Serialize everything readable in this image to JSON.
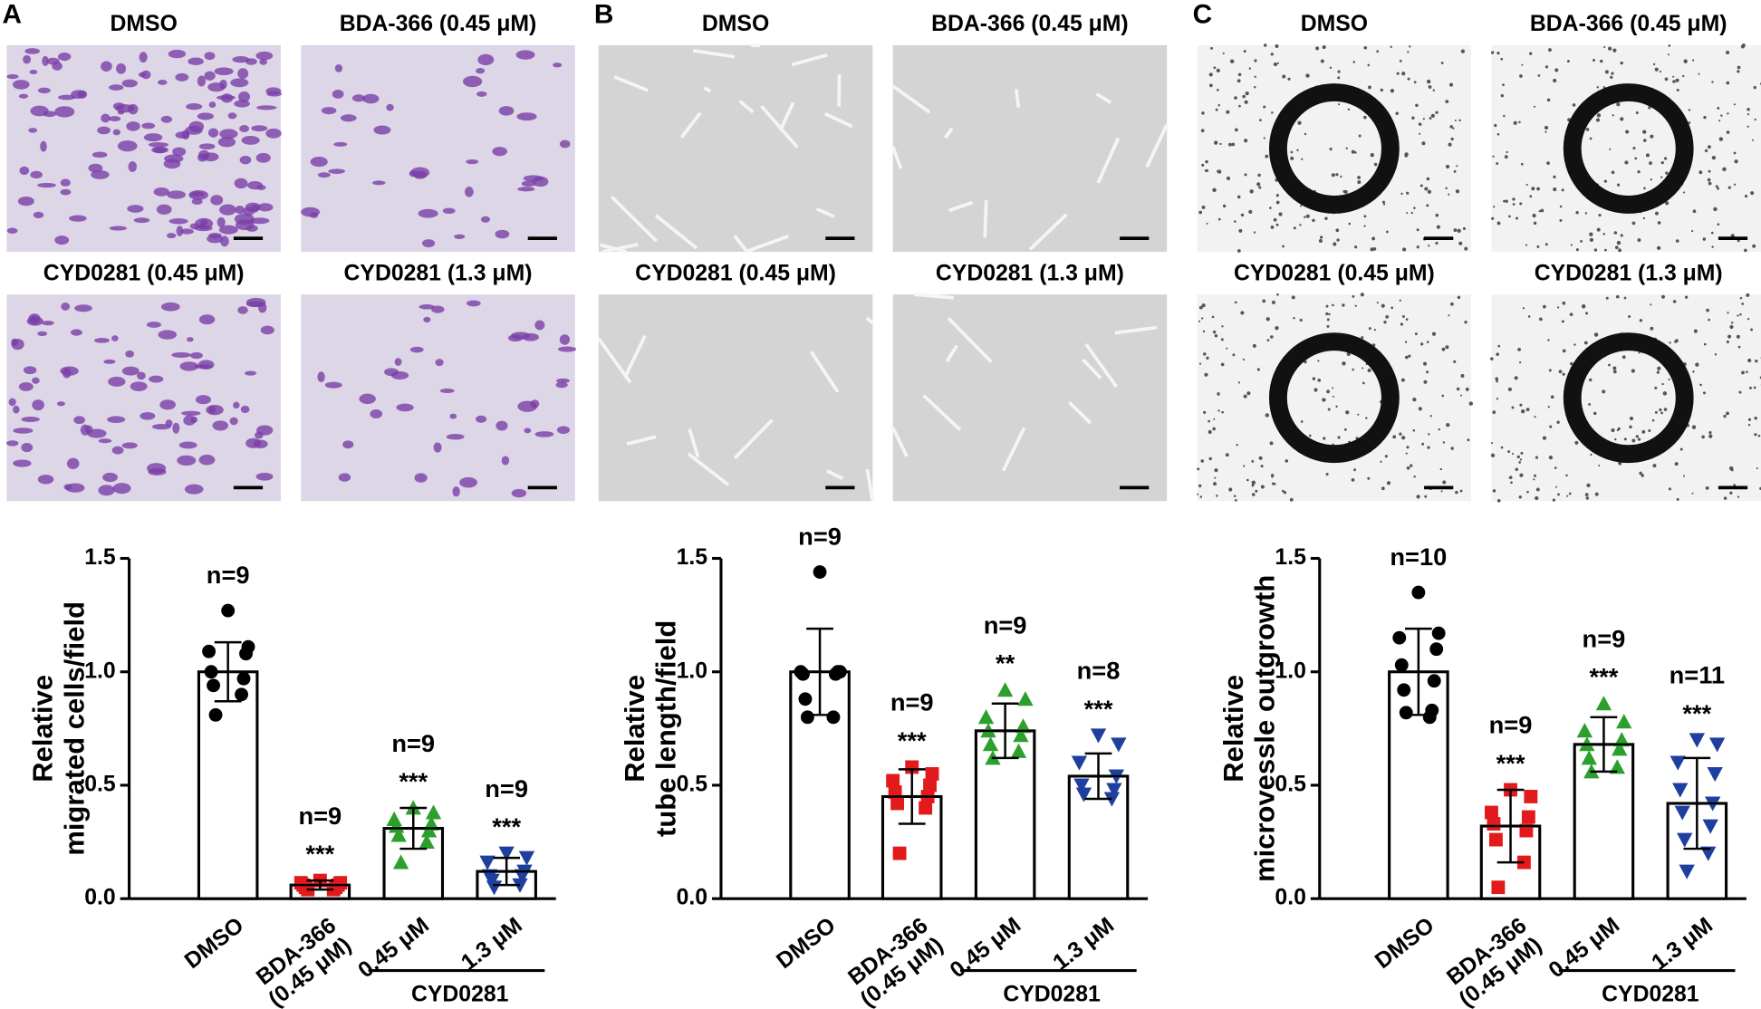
{
  "chart_data": [
    {
      "type": "bar",
      "panel": "A",
      "images": [
        {
          "caption": "DMSO"
        },
        {
          "caption": "BDA-366 (0.45 μM)"
        },
        {
          "caption": "CYD0281 (0.45 μM)"
        },
        {
          "caption": "CYD0281 (1.3 μM)"
        }
      ],
      "ylabel": "Relative migrated cells/field",
      "categories": [
        "DMSO",
        "BDA-366 (0.45 μM)",
        "0.45 μM",
        "1.3 μM"
      ],
      "group_label": "CYD0281",
      "values": [
        1.0,
        0.06,
        0.31,
        0.12
      ],
      "errors": [
        0.13,
        0.02,
        0.09,
        0.06
      ],
      "points": [
        [
          1.27,
          1.11,
          1.09,
          1.08,
          1.0,
          0.97,
          0.94,
          0.9,
          0.81
        ],
        [
          0.08,
          0.07,
          0.07,
          0.06,
          0.06,
          0.05,
          0.05,
          0.04,
          0.04
        ],
        [
          0.4,
          0.38,
          0.35,
          0.33,
          0.32,
          0.3,
          0.28,
          0.25,
          0.16
        ],
        [
          0.2,
          0.18,
          0.16,
          0.12,
          0.1,
          0.1,
          0.08,
          0.06,
          0.05
        ]
      ],
      "colors": [
        "#000000",
        "#e31a1c",
        "#2ca02c",
        "#1f3f9f"
      ],
      "markers": [
        "circle",
        "square",
        "triangle",
        "triangle-down"
      ],
      "annotations": [
        {
          "n": "n=9"
        },
        {
          "n": "n=9",
          "sig": "***"
        },
        {
          "n": "n=9",
          "sig": "***"
        },
        {
          "n": "n=9",
          "sig": "***"
        }
      ],
      "ylim": [
        0,
        1.5
      ],
      "yticks": [
        {
          "value": 0,
          "label": "0.0"
        },
        0.5,
        {
          "value": 1,
          "label": "1.0"
        },
        1.5
      ]
    },
    {
      "type": "bar",
      "panel": "B",
      "images": [
        {
          "caption": "DMSO"
        },
        {
          "caption": "BDA-366 (0.45 μM)"
        },
        {
          "caption": "CYD0281 (0.45 μM)"
        },
        {
          "caption": "CYD0281 (1.3 μM)"
        }
      ],
      "ylabel": "Relative tube length/field",
      "categories": [
        "DMSO",
        "BDA-366 (0.45 μM)",
        "0.45 μM",
        "1.3 μM"
      ],
      "group_label": "CYD0281",
      "values": [
        1.0,
        0.45,
        0.74,
        0.54
      ],
      "errors": [
        0.19,
        0.12,
        0.12,
        0.1
      ],
      "points": [
        [
          1.44,
          1.0,
          1.0,
          1.0,
          0.99,
          0.99,
          0.88,
          0.8,
          0.8
        ],
        [
          0.58,
          0.55,
          0.52,
          0.5,
          0.47,
          0.45,
          0.42,
          0.4,
          0.2
        ],
        [
          0.92,
          0.88,
          0.8,
          0.76,
          0.74,
          0.72,
          0.68,
          0.65,
          0.62
        ],
        [
          0.72,
          0.68,
          0.6,
          0.54,
          0.5,
          0.48,
          0.46,
          0.44
        ]
      ],
      "colors": [
        "#000000",
        "#e31a1c",
        "#2ca02c",
        "#1f3f9f"
      ],
      "markers": [
        "circle",
        "square",
        "triangle",
        "triangle-down"
      ],
      "annotations": [
        {
          "n": "n=9"
        },
        {
          "n": "n=9",
          "sig": "***"
        },
        {
          "n": "n=9",
          "sig": "**"
        },
        {
          "n": "n=8",
          "sig": "***"
        }
      ],
      "ylim": [
        0,
        1.5
      ],
      "yticks": [
        {
          "value": 0,
          "label": "0.0"
        },
        0.5,
        {
          "value": 1,
          "label": "1.0"
        },
        1.5
      ]
    },
    {
      "type": "bar",
      "panel": "C",
      "images": [
        {
          "caption": "DMSO"
        },
        {
          "caption": "BDA-366 (0.45 μM)"
        },
        {
          "caption": "CYD0281 (0.45 μM)"
        },
        {
          "caption": "CYD0281 (1.3 μM)"
        }
      ],
      "ylabel": "Relative microvessle outgrowth",
      "categories": [
        "DMSO",
        "BDA-366 (0.45 μM)",
        "0.45 μM",
        "1.3 μM"
      ],
      "group_label": "CYD0281",
      "values": [
        1.0,
        0.32,
        0.68,
        0.42
      ],
      "errors": [
        0.19,
        0.16,
        0.12,
        0.2
      ],
      "points": [
        [
          1.35,
          1.17,
          1.15,
          1.1,
          1.03,
          0.96,
          0.92,
          0.83,
          0.82,
          0.8
        ],
        [
          0.48,
          0.45,
          0.38,
          0.36,
          0.33,
          0.3,
          0.26,
          0.16,
          0.05
        ],
        [
          0.86,
          0.78,
          0.74,
          0.7,
          0.68,
          0.66,
          0.62,
          0.58,
          0.56
        ],
        [
          0.7,
          0.68,
          0.6,
          0.55,
          0.48,
          0.42,
          0.38,
          0.32,
          0.26,
          0.2,
          0.12
        ]
      ],
      "colors": [
        "#000000",
        "#e31a1c",
        "#2ca02c",
        "#1f3f9f"
      ],
      "markers": [
        "circle",
        "square",
        "triangle",
        "triangle-down"
      ],
      "annotations": [
        {
          "n": "n=10"
        },
        {
          "n": "n=9",
          "sig": "***"
        },
        {
          "n": "n=9",
          "sig": "***"
        },
        {
          "n": "n=11",
          "sig": "***"
        }
      ],
      "ylim": [
        0,
        1.5
      ],
      "yticks": [
        {
          "value": 0,
          "label": "0.0"
        },
        0.5,
        {
          "value": 1,
          "label": "1.0"
        },
        1.5
      ]
    }
  ]
}
